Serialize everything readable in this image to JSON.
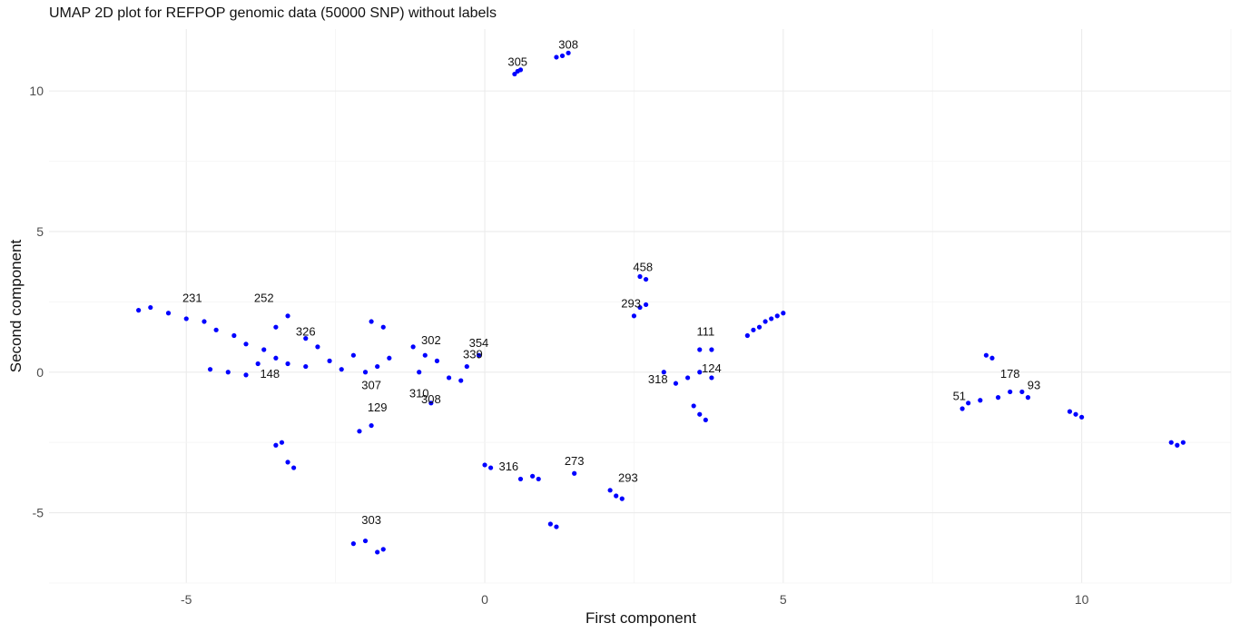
{
  "chart_data": {
    "type": "scatter",
    "title": "UMAP 2D plot for REFPOP genomic data (50000 SNP) without labels",
    "xlabel": "First component",
    "ylabel": "Second component",
    "xlim": [
      -7.3,
      12.5
    ],
    "ylim": [
      -7.5,
      12.2
    ],
    "x_ticks": [
      -5,
      0,
      5,
      10
    ],
    "x_tick_labels": [
      "-5",
      "0",
      "5",
      "10"
    ],
    "y_ticks": [
      -5,
      0,
      5,
      10
    ],
    "y_tick_labels": [
      "-5",
      "0",
      "5",
      "10"
    ],
    "grid": true,
    "point_color": "#0000ff",
    "points": [
      {
        "x": 0.5,
        "y": 10.6
      },
      {
        "x": 0.55,
        "y": 10.7
      },
      {
        "x": 0.6,
        "y": 10.75
      },
      {
        "x": 1.2,
        "y": 11.2
      },
      {
        "x": 1.3,
        "y": 11.25
      },
      {
        "x": 1.4,
        "y": 11.35
      },
      {
        "x": -5.8,
        "y": 2.2
      },
      {
        "x": -5.6,
        "y": 2.3
      },
      {
        "x": -5.3,
        "y": 2.1
      },
      {
        "x": -5.0,
        "y": 1.9
      },
      {
        "x": -4.7,
        "y": 1.8
      },
      {
        "x": -4.5,
        "y": 1.5
      },
      {
        "x": -4.2,
        "y": 1.3
      },
      {
        "x": -4.0,
        "y": 1.0
      },
      {
        "x": -3.7,
        "y": 0.8
      },
      {
        "x": -3.5,
        "y": 0.5
      },
      {
        "x": -3.3,
        "y": 0.3
      },
      {
        "x": -3.0,
        "y": 0.2
      },
      {
        "x": -4.6,
        "y": 0.1
      },
      {
        "x": -4.3,
        "y": 0.0
      },
      {
        "x": -4.0,
        "y": -0.1
      },
      {
        "x": -3.8,
        "y": 0.3
      },
      {
        "x": -3.5,
        "y": 1.6
      },
      {
        "x": -3.3,
        "y": 2.0
      },
      {
        "x": -3.0,
        "y": 1.2
      },
      {
        "x": -2.8,
        "y": 0.9
      },
      {
        "x": -2.6,
        "y": 0.4
      },
      {
        "x": -2.4,
        "y": 0.1
      },
      {
        "x": -2.2,
        "y": 0.6
      },
      {
        "x": -2.0,
        "y": 0.0
      },
      {
        "x": -1.8,
        "y": 0.2
      },
      {
        "x": -1.6,
        "y": 0.5
      },
      {
        "x": -1.7,
        "y": 1.6
      },
      {
        "x": -1.9,
        "y": 1.8
      },
      {
        "x": -1.2,
        "y": 0.9
      },
      {
        "x": -1.0,
        "y": 0.6
      },
      {
        "x": -0.8,
        "y": 0.4
      },
      {
        "x": -0.6,
        "y": -0.2
      },
      {
        "x": -0.4,
        "y": -0.3
      },
      {
        "x": -0.3,
        "y": 0.2
      },
      {
        "x": -0.1,
        "y": 0.6
      },
      {
        "x": -0.9,
        "y": -1.1
      },
      {
        "x": -1.1,
        "y": 0.0
      },
      {
        "x": -2.1,
        "y": -2.1
      },
      {
        "x": -1.9,
        "y": -1.9
      },
      {
        "x": -3.5,
        "y": -2.6
      },
      {
        "x": -3.4,
        "y": -2.5
      },
      {
        "x": -3.3,
        "y": -3.2
      },
      {
        "x": -3.2,
        "y": -3.4
      },
      {
        "x": -2.2,
        "y": -6.1
      },
      {
        "x": -2.0,
        "y": -6.0
      },
      {
        "x": -1.8,
        "y": -6.4
      },
      {
        "x": -1.7,
        "y": -6.3
      },
      {
        "x": 0.0,
        "y": -3.3
      },
      {
        "x": 0.1,
        "y": -3.4
      },
      {
        "x": 0.6,
        "y": -3.8
      },
      {
        "x": 0.8,
        "y": -3.7
      },
      {
        "x": 0.9,
        "y": -3.8
      },
      {
        "x": 1.1,
        "y": -5.4
      },
      {
        "x": 1.2,
        "y": -5.5
      },
      {
        "x": 1.5,
        "y": -3.6
      },
      {
        "x": 2.1,
        "y": -4.2
      },
      {
        "x": 2.2,
        "y": -4.4
      },
      {
        "x": 2.3,
        "y": -4.5
      },
      {
        "x": 2.5,
        "y": 2.0
      },
      {
        "x": 2.6,
        "y": 2.3
      },
      {
        "x": 2.7,
        "y": 2.4
      },
      {
        "x": 2.6,
        "y": 3.4
      },
      {
        "x": 2.7,
        "y": 3.3
      },
      {
        "x": 3.0,
        "y": 0.0
      },
      {
        "x": 3.2,
        "y": -0.4
      },
      {
        "x": 3.4,
        "y": -0.2
      },
      {
        "x": 3.6,
        "y": 0.0
      },
      {
        "x": 3.5,
        "y": -1.2
      },
      {
        "x": 3.6,
        "y": -1.5
      },
      {
        "x": 3.7,
        "y": -1.7
      },
      {
        "x": 3.8,
        "y": -0.2
      },
      {
        "x": 3.6,
        "y": 0.8
      },
      {
        "x": 3.8,
        "y": 0.8
      },
      {
        "x": 4.4,
        "y": 1.3
      },
      {
        "x": 4.5,
        "y": 1.5
      },
      {
        "x": 4.6,
        "y": 1.6
      },
      {
        "x": 4.7,
        "y": 1.8
      },
      {
        "x": 4.8,
        "y": 1.9
      },
      {
        "x": 4.9,
        "y": 2.0
      },
      {
        "x": 5.0,
        "y": 2.1
      },
      {
        "x": 8.0,
        "y": -1.3
      },
      {
        "x": 8.1,
        "y": -1.1
      },
      {
        "x": 8.3,
        "y": -1.0
      },
      {
        "x": 8.4,
        "y": 0.6
      },
      {
        "x": 8.5,
        "y": 0.5
      },
      {
        "x": 8.6,
        "y": -0.9
      },
      {
        "x": 8.8,
        "y": -0.7
      },
      {
        "x": 9.0,
        "y": -0.7
      },
      {
        "x": 9.1,
        "y": -0.9
      },
      {
        "x": 9.8,
        "y": -1.4
      },
      {
        "x": 9.9,
        "y": -1.5
      },
      {
        "x": 10.0,
        "y": -1.6
      },
      {
        "x": 11.5,
        "y": -2.5
      },
      {
        "x": 11.6,
        "y": -2.6
      },
      {
        "x": 11.7,
        "y": -2.5
      }
    ],
    "annotations": [
      {
        "text": "305",
        "x": 0.55,
        "y": 10.9
      },
      {
        "text": "308",
        "x": 1.4,
        "y": 11.5
      },
      {
        "text": "231",
        "x": -4.9,
        "y": 2.5
      },
      {
        "text": "252",
        "x": -3.7,
        "y": 2.5
      },
      {
        "text": "293",
        "x": 2.45,
        "y": 2.3
      },
      {
        "text": "458",
        "x": 2.65,
        "y": 3.6
      },
      {
        "text": "111",
        "x": 3.7,
        "y": 1.3
      },
      {
        "text": "354",
        "x": -0.1,
        "y": 0.9
      },
      {
        "text": "302",
        "x": -0.9,
        "y": 1.0
      },
      {
        "text": "339",
        "x": -0.2,
        "y": 0.5
      },
      {
        "text": "326",
        "x": -3.0,
        "y": 1.3
      },
      {
        "text": "307",
        "x": -1.9,
        "y": -0.6
      },
      {
        "text": "310",
        "x": -1.1,
        "y": -0.9
      },
      {
        "text": "308",
        "x": -0.9,
        "y": -1.1
      },
      {
        "text": "129",
        "x": -1.8,
        "y": -1.4
      },
      {
        "text": "148",
        "x": -3.6,
        "y": -0.2
      },
      {
        "text": "303",
        "x": -1.9,
        "y": -5.4
      },
      {
        "text": "316",
        "x": 0.4,
        "y": -3.5
      },
      {
        "text": "273",
        "x": 1.5,
        "y": -3.3
      },
      {
        "text": "318",
        "x": 2.9,
        "y": -0.4
      },
      {
        "text": "124",
        "x": 3.8,
        "y": 0.0
      },
      {
        "text": "178",
        "x": 8.8,
        "y": -0.2
      },
      {
        "text": "93",
        "x": 9.2,
        "y": -0.6
      },
      {
        "text": "51",
        "x": 7.95,
        "y": -1.0
      },
      {
        "text": "293",
        "x": 2.4,
        "y": -3.9
      }
    ]
  }
}
